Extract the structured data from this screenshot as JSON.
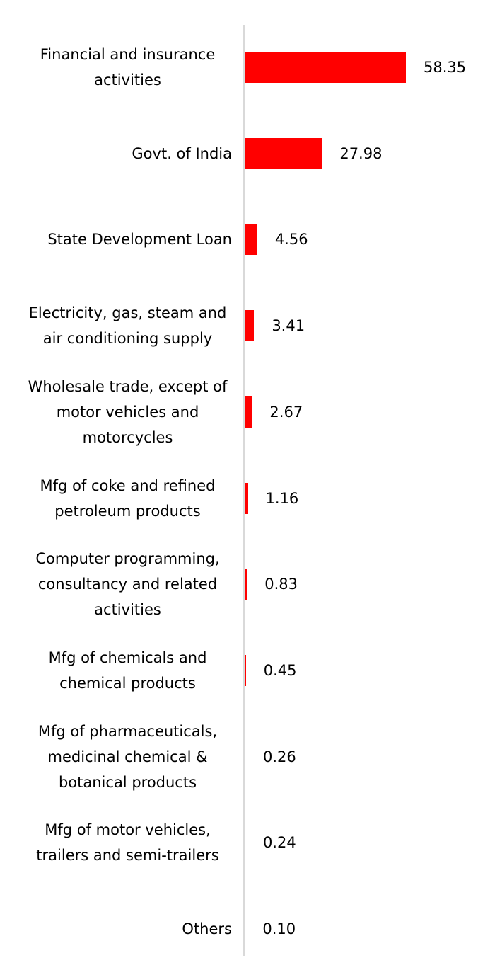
{
  "chart_data": {
    "type": "barh",
    "categories": [
      "Financial and insurance activities",
      "Govt. of India",
      "State Development Loan",
      "Electricity, gas, steam and air conditioning supply",
      "Wholesale trade, except of motor vehicles and motorcycles",
      "Mfg of coke and refined petroleum products",
      "Computer programming, consultancy and related activities",
      "Mfg of chemicals and chemical products",
      "Mfg of pharmaceuticals, medicinal chemical & botanical products",
      "Mfg of motor vehicles, trailers and semi-trailers",
      "Others"
    ],
    "values": [
      58.35,
      27.98,
      4.56,
      3.41,
      2.67,
      1.16,
      0.83,
      0.45,
      0.26,
      0.24,
      0.1
    ],
    "value_labels": [
      "58.35",
      "27.98",
      "4.56",
      "3.41",
      "2.67",
      "1.16",
      "0.83",
      "0.45",
      "0.26",
      "0.24",
      "0.10"
    ],
    "color": "#ff0000"
  }
}
